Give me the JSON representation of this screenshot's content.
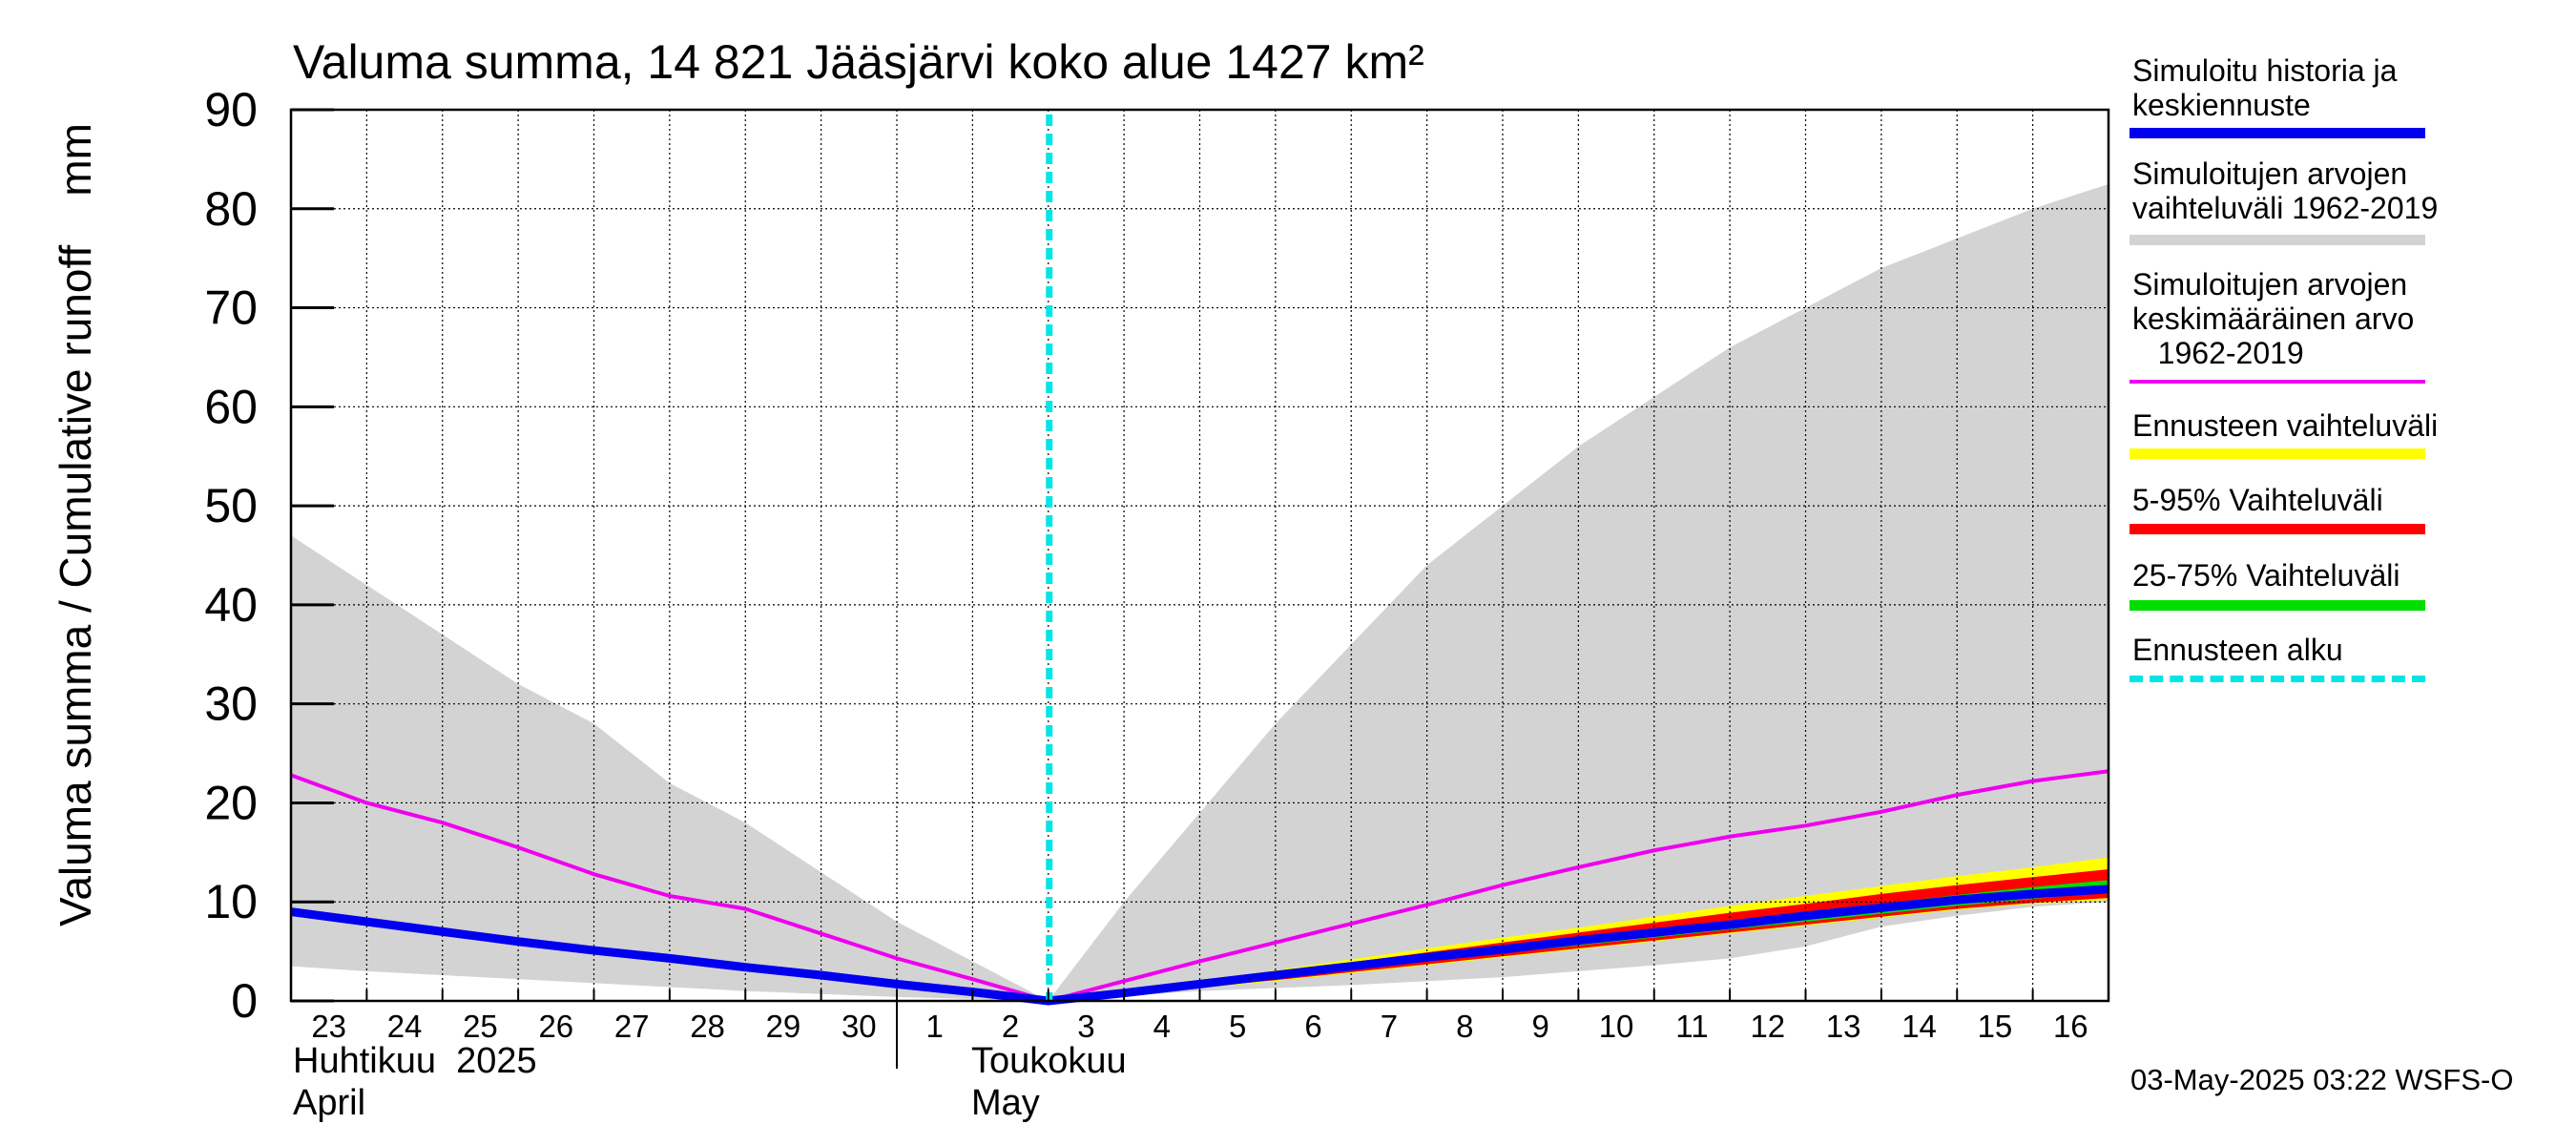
{
  "chart_data": {
    "type": "area",
    "title": "Valuma summa, 14 821 Jääsjärvi koko alue 1427 km²",
    "ylabel": "Valuma summa / Cumulative runoff    mm",
    "ylim": [
      0,
      90
    ],
    "yticks": [
      0,
      10,
      20,
      30,
      40,
      50,
      60,
      70,
      80,
      90
    ],
    "grid": true,
    "x_day_labels": [
      "23",
      "24",
      "25",
      "26",
      "27",
      "28",
      "29",
      "30",
      "1",
      "2",
      "3",
      "4",
      "5",
      "6",
      "7",
      "8",
      "9",
      "10",
      "11",
      "12",
      "13",
      "14",
      "15",
      "16"
    ],
    "month_labels": [
      {
        "fi": "Huhtikuu  2025",
        "en": "April"
      },
      {
        "fi": "Toukokuu",
        "en": "May"
      }
    ],
    "x": [
      "2025-04-23",
      "2025-04-24",
      "2025-04-25",
      "2025-04-26",
      "2025-04-27",
      "2025-04-28",
      "2025-04-29",
      "2025-04-30",
      "2025-05-01",
      "2025-05-02",
      "2025-05-03",
      "2025-05-04",
      "2025-05-05",
      "2025-05-06",
      "2025-05-07",
      "2025-05-08",
      "2025-05-09",
      "2025-05-10",
      "2025-05-11",
      "2025-05-12",
      "2025-05-13",
      "2025-05-14",
      "2025-05-15",
      "2025-05-16",
      "2025-05-17"
    ],
    "forecast_start": "2025-05-03",
    "series": [
      {
        "name": "Simuloitujen arvojen vaihteluväli 1962-2019",
        "kind": "band",
        "color": "#d3d3d3",
        "lower": [
          3.5,
          3.0,
          2.6,
          2.2,
          1.8,
          1.4,
          1.0,
          0.7,
          0.4,
          0.2,
          0.0,
          0.5,
          1.0,
          1.3,
          1.6,
          2.0,
          2.4,
          3.0,
          3.6,
          4.3,
          5.5,
          7.5,
          8.6,
          9.5,
          10.0
        ],
        "upper": [
          47,
          42,
          37,
          32,
          28,
          22,
          18,
          13,
          8,
          4,
          0,
          10,
          19,
          28,
          36,
          44,
          50,
          56,
          61,
          66,
          70,
          74,
          77,
          80,
          82.5
        ]
      },
      {
        "name": "Ennusteen vaihteluväli",
        "kind": "band",
        "color": "#ffff00",
        "lower": [
          null,
          null,
          null,
          null,
          null,
          null,
          null,
          null,
          null,
          null,
          0.0,
          0.6,
          1.3,
          2.0,
          2.8,
          3.6,
          4.4,
          5.2,
          6.0,
          6.8,
          7.6,
          8.4,
          9.2,
          9.8,
          10.2
        ],
        "upper": [
          null,
          null,
          null,
          null,
          null,
          null,
          null,
          null,
          null,
          null,
          0.0,
          0.9,
          2.0,
          3.1,
          4.2,
          5.3,
          6.4,
          7.4,
          8.5,
          9.6,
          10.6,
          11.6,
          12.6,
          13.5,
          14.5
        ]
      },
      {
        "name": "5-95% Vaihteluväli",
        "kind": "band",
        "color": "#ff0000",
        "lower": [
          null,
          null,
          null,
          null,
          null,
          null,
          null,
          null,
          null,
          null,
          0.0,
          0.7,
          1.4,
          2.1,
          2.9,
          3.7,
          4.5,
          5.3,
          6.1,
          6.9,
          7.7,
          8.5,
          9.3,
          9.9,
          10.4
        ],
        "upper": [
          null,
          null,
          null,
          null,
          null,
          null,
          null,
          null,
          null,
          null,
          0.0,
          0.85,
          1.8,
          2.8,
          3.9,
          4.9,
          5.9,
          6.9,
          7.9,
          8.9,
          9.8,
          10.8,
          11.7,
          12.5,
          13.3
        ]
      },
      {
        "name": "25-75% Vaihteluväli",
        "kind": "band",
        "color": "#00dd00",
        "lower": [
          null,
          null,
          null,
          null,
          null,
          null,
          null,
          null,
          null,
          null,
          0.0,
          0.75,
          1.55,
          2.4,
          3.2,
          4.0,
          4.8,
          5.6,
          6.4,
          7.2,
          8.0,
          8.8,
          9.6,
          10.3,
          11.0
        ],
        "upper": [
          null,
          null,
          null,
          null,
          null,
          null,
          null,
          null,
          null,
          null,
          0.0,
          0.8,
          1.7,
          2.6,
          3.5,
          4.4,
          5.3,
          6.2,
          7.1,
          8.0,
          8.9,
          9.8,
          10.7,
          11.5,
          12.2
        ]
      },
      {
        "name": "Simuloitujen arvojen keskimääräinen arvo 1962-2019",
        "kind": "line",
        "color": "#ee00ee",
        "values": [
          22.8,
          20.0,
          18.0,
          15.5,
          12.8,
          10.6,
          9.3,
          6.8,
          4.3,
          2.2,
          0.0,
          2.0,
          4.0,
          5.9,
          7.8,
          9.7,
          11.7,
          13.5,
          15.2,
          16.6,
          17.7,
          19.1,
          20.8,
          22.2,
          23.2
        ]
      },
      {
        "name": "Simuloitu historia ja keskiennuste",
        "kind": "line",
        "color": "#0000ee",
        "values": [
          9.0,
          8.0,
          7.0,
          6.0,
          5.1,
          4.3,
          3.4,
          2.6,
          1.7,
          0.9,
          0.0,
          0.8,
          1.7,
          2.6,
          3.5,
          4.4,
          5.2,
          6.1,
          6.9,
          7.7,
          8.6,
          9.4,
          10.2,
          10.8,
          11.3
        ]
      }
    ]
  },
  "legend": [
    {
      "label": "Simuloitu historia ja\nkeskiennuste",
      "color": "#0000ee",
      "style": "solid"
    },
    {
      "label": "Simuloitujen arvojen\nvaihteluväli 1962-2019",
      "color": "#d3d3d3",
      "style": "solid"
    },
    {
      "label": "Simuloitujen arvojen\nkeskimääräinen arvo\n   1962-2019",
      "color": "#ee00ee",
      "style": "thin"
    },
    {
      "label": "Ennusteen vaihteluväli",
      "color": "#ffff00",
      "style": "solid"
    },
    {
      "label": "5-95% Vaihteluväli",
      "color": "#ff0000",
      "style": "solid"
    },
    {
      "label": "25-75% Vaihteluväli",
      "color": "#00dd00",
      "style": "solid"
    },
    {
      "label": "Ennusteen alku",
      "color": "#00e5e5",
      "style": "dashed"
    }
  ],
  "footer": "03-May-2025 03:22 WSFS-O"
}
